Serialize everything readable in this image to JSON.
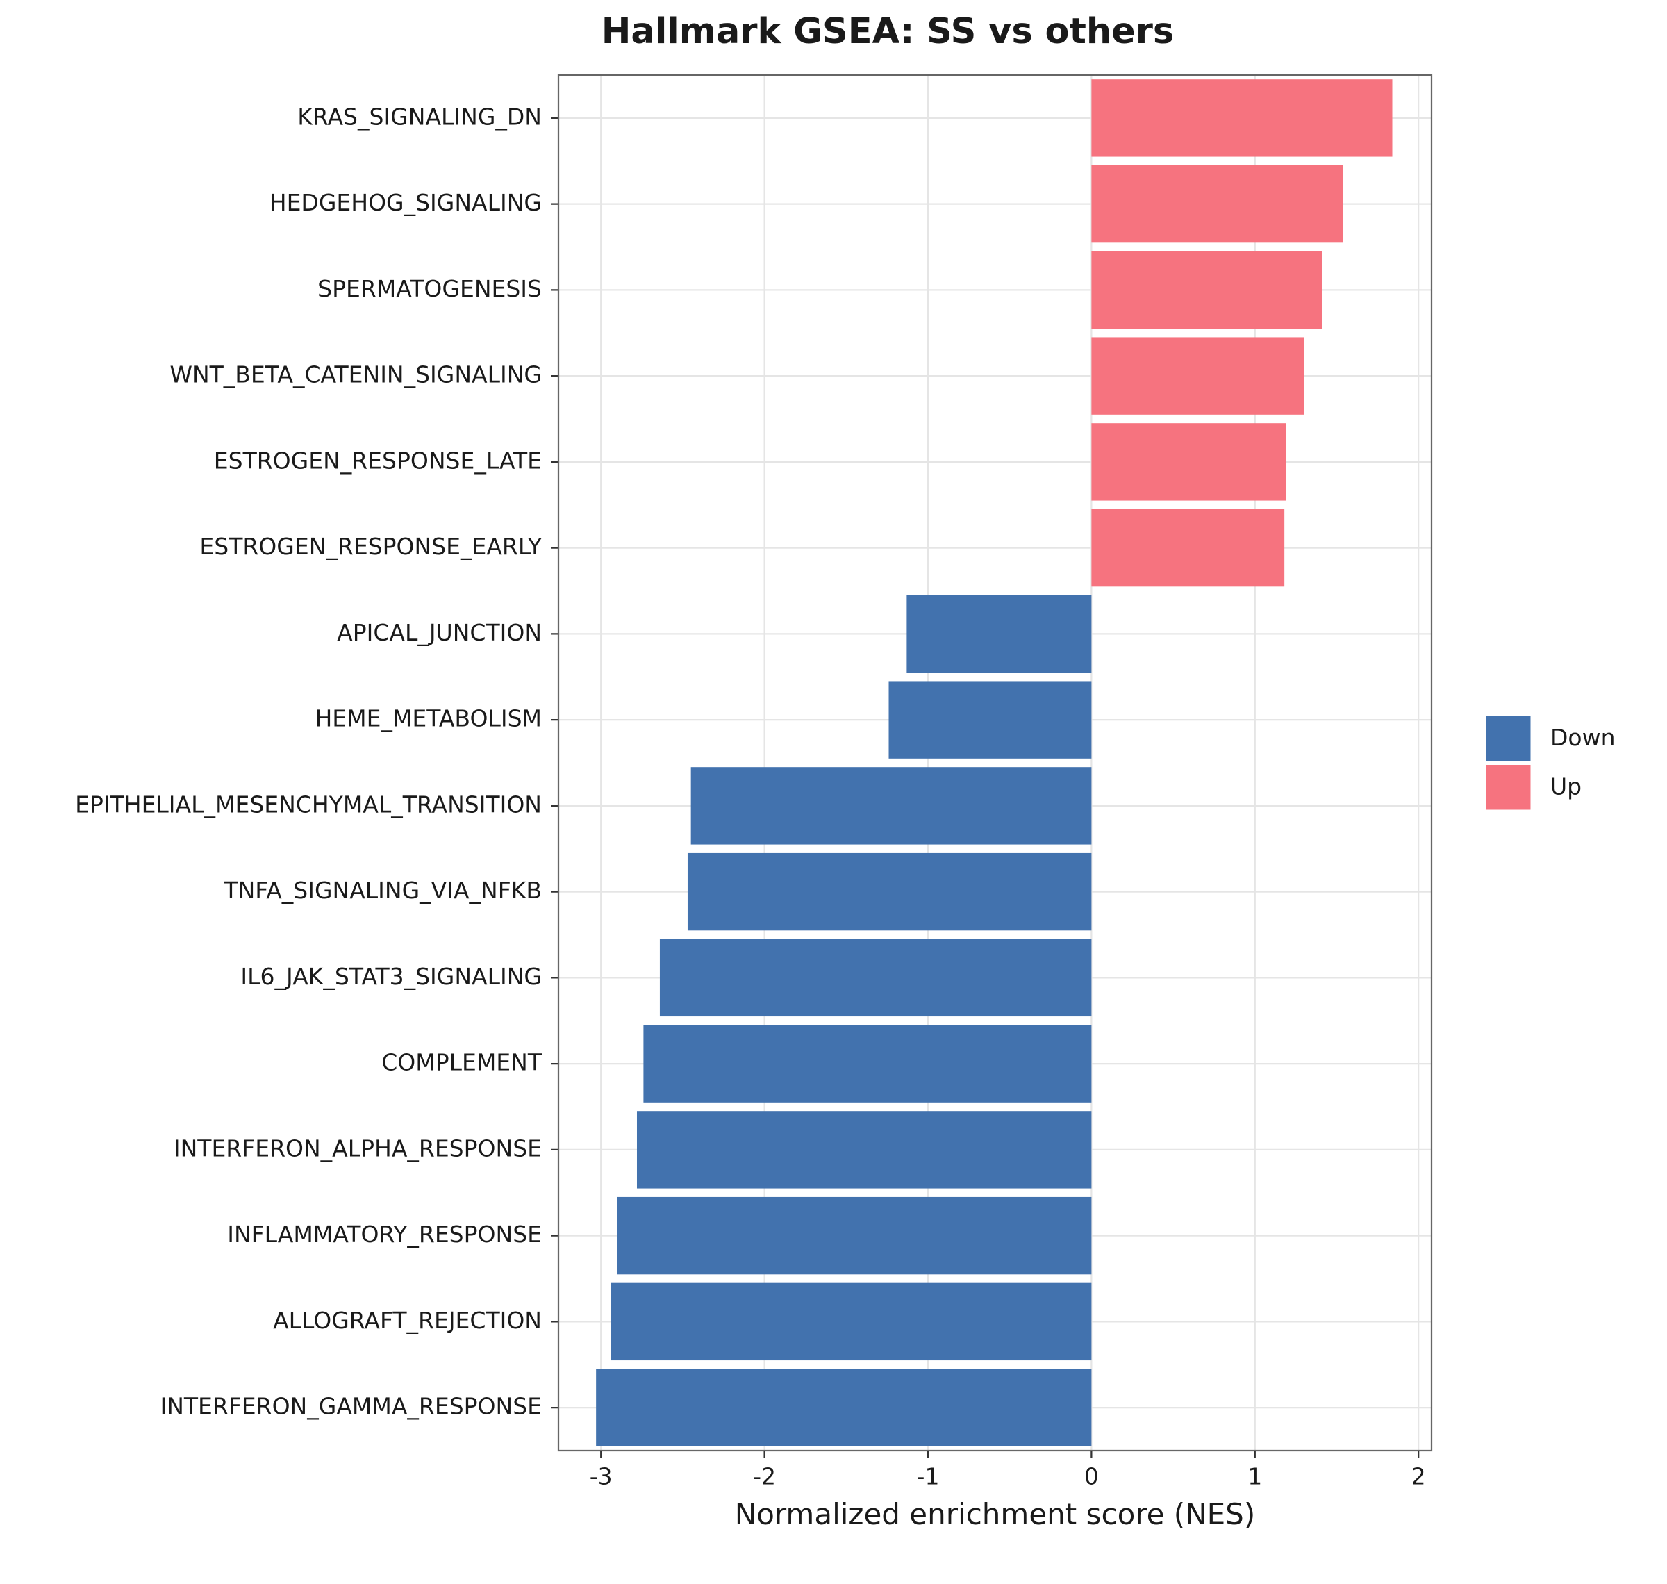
{
  "chart_data": {
    "type": "bar",
    "orientation": "horizontal",
    "title": "Hallmark GSEA: SS vs others",
    "x_label": "Normalized enrichment score (NES)",
    "categories": [
      "KRAS_SIGNALING_DN",
      "HEDGEHOG_SIGNALING",
      "SPERMATOGENESIS",
      "WNT_BETA_CATENIN_SIGNALING",
      "ESTROGEN_RESPONSE_LATE",
      "ESTROGEN_RESPONSE_EARLY",
      "APICAL_JUNCTION",
      "HEME_METABOLISM",
      "EPITHELIAL_MESENCHYMAL_TRANSITION",
      "TNFA_SIGNALING_VIA_NFKB",
      "IL6_JAK_STAT3_SIGNALING",
      "COMPLEMENT",
      "INTERFERON_ALPHA_RESPONSE",
      "INFLAMMATORY_RESPONSE",
      "ALLOGRAFT_REJECTION",
      "INTERFERON_GAMMA_RESPONSE"
    ],
    "series": [
      {
        "name": "Down",
        "color": "#4272ae",
        "values": [
          null,
          null,
          null,
          null,
          null,
          null,
          -1.13,
          -1.24,
          -2.45,
          -2.47,
          -2.64,
          -2.74,
          -2.78,
          -2.9,
          -2.94,
          -3.03
        ]
      },
      {
        "name": "Up",
        "color": "#f6737f",
        "values": [
          1.84,
          1.54,
          1.41,
          1.3,
          1.19,
          1.18,
          null,
          null,
          null,
          null,
          null,
          null,
          null,
          null,
          null,
          null
        ]
      }
    ],
    "xlim": [
      -3.26,
      2.08
    ],
    "xticks": [
      -3,
      -2,
      -1,
      0,
      1,
      2
    ],
    "grid": true,
    "legend": "right"
  }
}
